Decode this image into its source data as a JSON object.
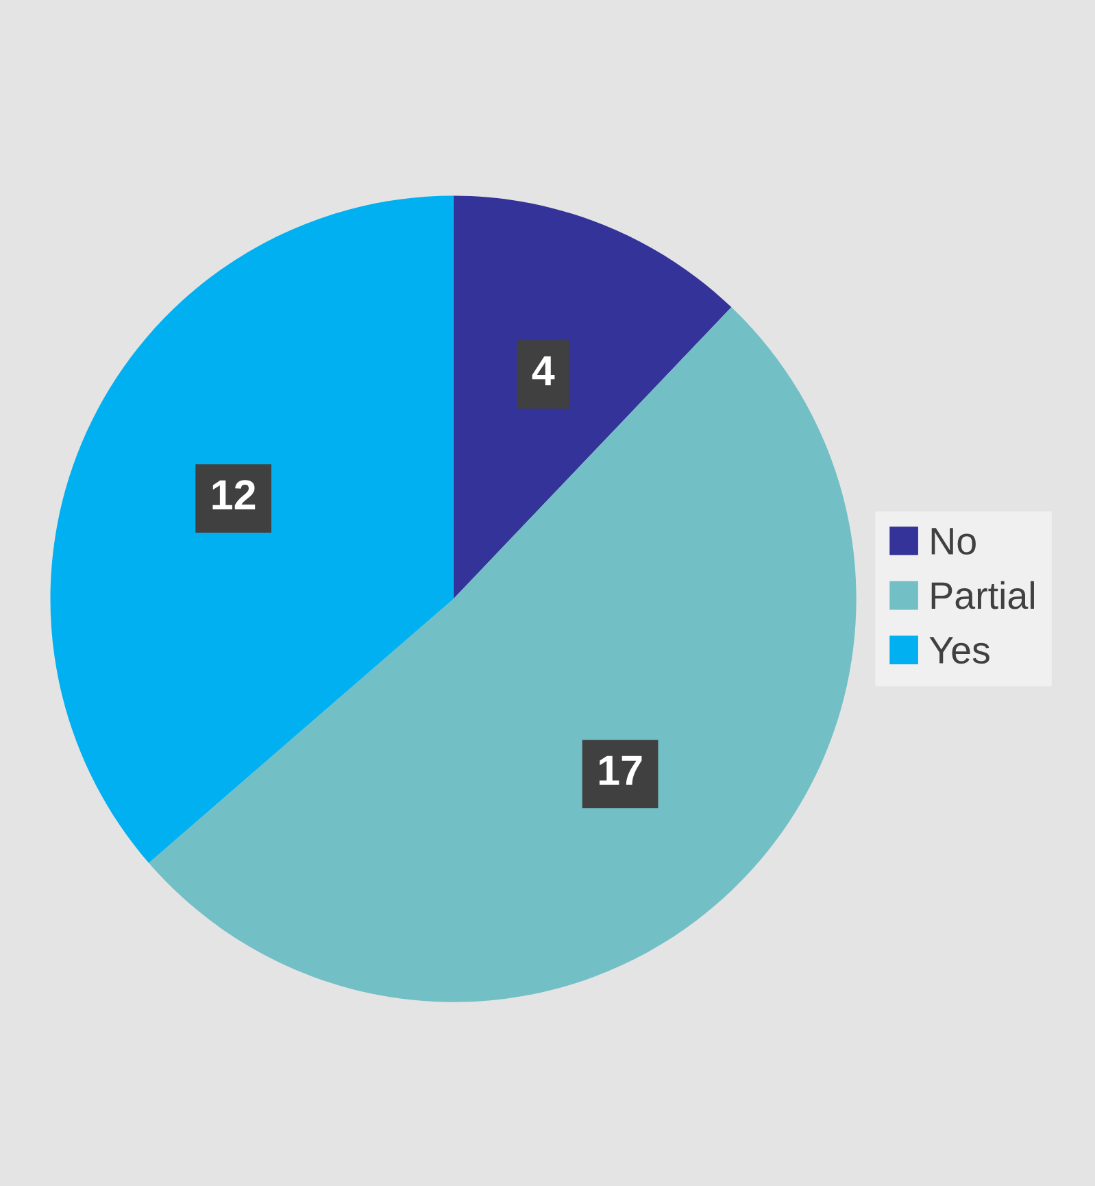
{
  "chart_data": {
    "type": "pie",
    "categories": [
      "No",
      "Partial",
      "Yes"
    ],
    "values": [
      4,
      17,
      12
    ],
    "colors": [
      "#333399",
      "#72bfc5",
      "#00b0f0"
    ],
    "data_labels": true,
    "legend": "right"
  }
}
